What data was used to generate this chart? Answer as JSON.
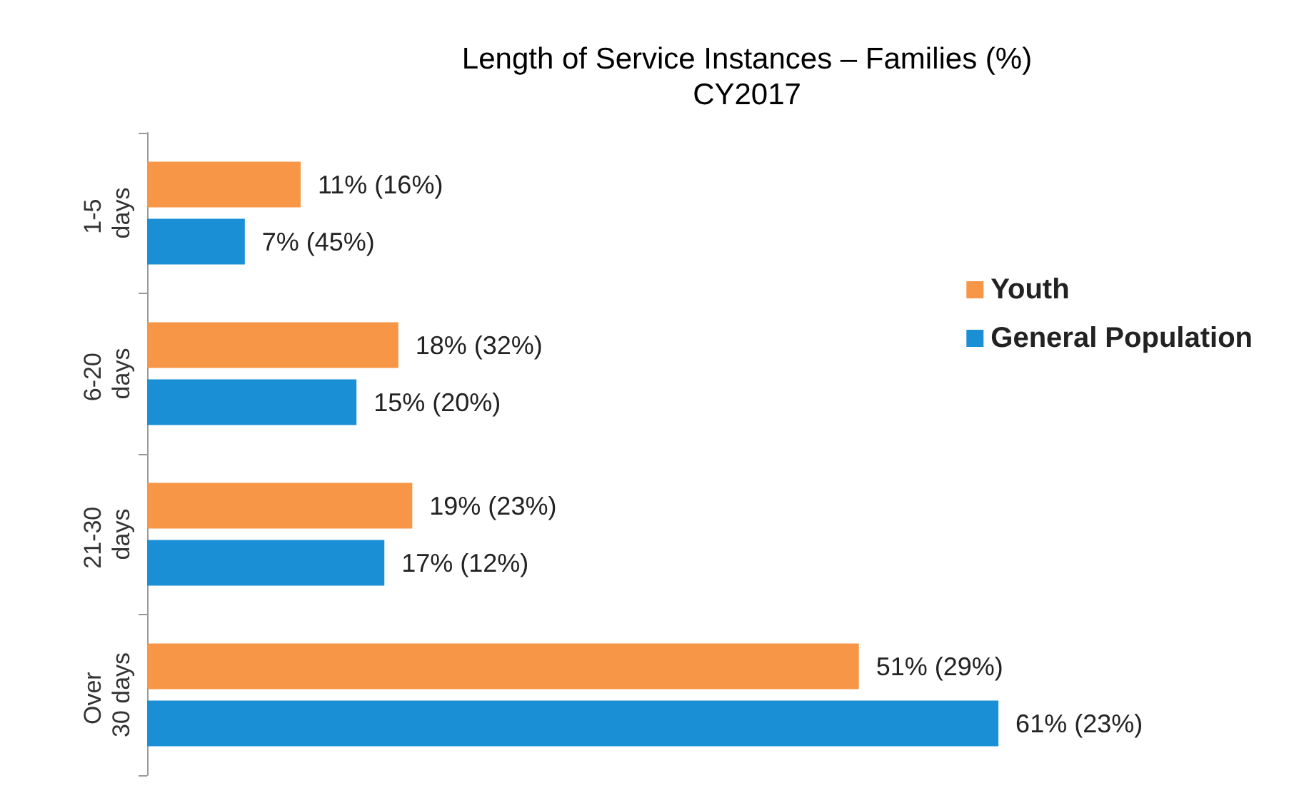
{
  "chart_data": {
    "type": "bar",
    "orientation": "horizontal",
    "title": "Length of Service Instances – Families (%)",
    "subtitle": "CY2017",
    "categories": [
      "1-5 days",
      "6-20 days",
      "21-30 days",
      "Over 30 days"
    ],
    "series": [
      {
        "name": "Youth",
        "color": "#f79646",
        "values": [
          11,
          18,
          19,
          51
        ],
        "value_labels": [
          "11% (16%)",
          "18% (32%)",
          "19% (23%)",
          "51% (29%)"
        ]
      },
      {
        "name": "General Population",
        "color": "#1a8fd6",
        "values": [
          7,
          15,
          17,
          61
        ],
        "value_labels": [
          "7% (45%)",
          "15% (20%)",
          "17% (12%)",
          "61% (23%)"
        ]
      }
    ],
    "legend": "top right"
  }
}
